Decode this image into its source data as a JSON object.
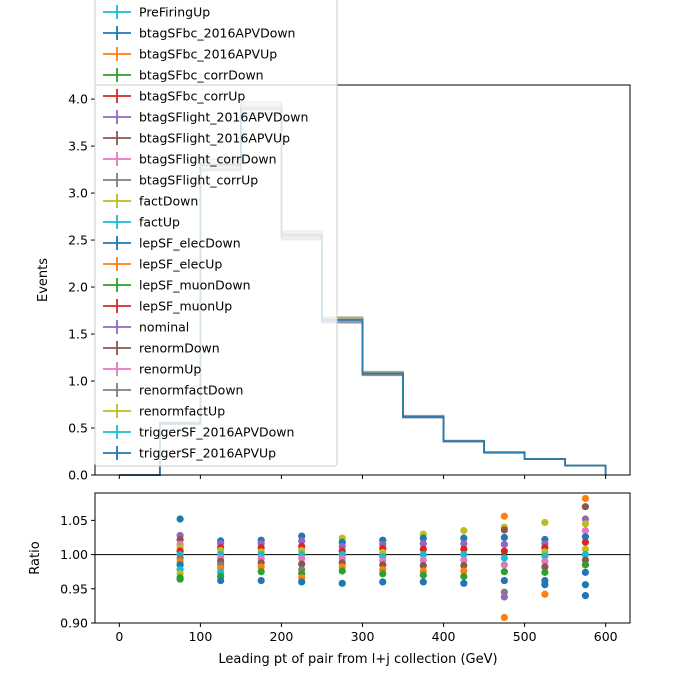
{
  "chart_data": [
    {
      "type": "line",
      "panel": "main",
      "xlabel": "",
      "ylabel": "Events",
      "xlim": [
        -30,
        630
      ],
      "ylim": [
        0,
        4.15
      ],
      "yticks": [
        0.0,
        0.5,
        1.0,
        1.5,
        2.0,
        2.5,
        3.0,
        3.5,
        4.0
      ],
      "ytick_labels": [
        "0.0",
        "0.5",
        "1.0",
        "1.5",
        "2.0",
        "2.5",
        "3.0",
        "3.5",
        "4.0"
      ],
      "bin_edges": [
        0,
        50,
        100,
        150,
        200,
        250,
        300,
        350,
        400,
        450,
        500,
        550,
        600
      ],
      "nominal_values": [
        0.0,
        0.55,
        3.3,
        3.9,
        2.55,
        1.65,
        1.08,
        0.62,
        0.36,
        0.24,
        0.17,
        0.1
      ],
      "legend_placement": "upper-left",
      "series": [
        {
          "name": "PreFiringUp",
          "color": "#17becf"
        },
        {
          "name": "btagSFbc_2016APVDown",
          "color": "#1f77b4"
        },
        {
          "name": "btagSFbc_2016APVUp",
          "color": "#ff7f0e"
        },
        {
          "name": "btagSFbc_corrDown",
          "color": "#2ca02c"
        },
        {
          "name": "btagSFbc_corrUp",
          "color": "#d62728"
        },
        {
          "name": "btagSFlight_2016APVDown",
          "color": "#9467bd"
        },
        {
          "name": "btagSFlight_2016APVUp",
          "color": "#8c564b"
        },
        {
          "name": "btagSFlight_corrDown",
          "color": "#e377c2"
        },
        {
          "name": "btagSFlight_corrUp",
          "color": "#7f7f7f"
        },
        {
          "name": "factDown",
          "color": "#bcbd22"
        },
        {
          "name": "factUp",
          "color": "#17becf"
        },
        {
          "name": "lepSF_elecDown",
          "color": "#1f77b4"
        },
        {
          "name": "lepSF_elecUp",
          "color": "#ff7f0e"
        },
        {
          "name": "lepSF_muonDown",
          "color": "#2ca02c"
        },
        {
          "name": "lepSF_muonUp",
          "color": "#d62728"
        },
        {
          "name": "nominal",
          "color": "#9467bd"
        },
        {
          "name": "renormDown",
          "color": "#8c564b"
        },
        {
          "name": "renormUp",
          "color": "#e377c2"
        },
        {
          "name": "renormfactDown",
          "color": "#7f7f7f"
        },
        {
          "name": "renormfactUp",
          "color": "#bcbd22"
        },
        {
          "name": "triggerSF_2016APVDown",
          "color": "#17becf"
        },
        {
          "name": "triggerSF_2016APVUp",
          "color": "#1f77b4"
        }
      ]
    },
    {
      "type": "scatter",
      "panel": "ratio",
      "xlabel": "Leading pt of pair from l+j collection (GeV)",
      "ylabel": "Ratio",
      "xlim": [
        -30,
        630
      ],
      "ylim": [
        0.9,
        1.09
      ],
      "xticks": [
        0,
        100,
        200,
        300,
        400,
        500,
        600
      ],
      "xtick_labels": [
        "0",
        "100",
        "200",
        "300",
        "400",
        "500",
        "600"
      ],
      "yticks": [
        0.9,
        0.95,
        1.0,
        1.05
      ],
      "ytick_labels": [
        "0.90",
        "0.95",
        "1.00",
        "1.05"
      ],
      "reference_line": 1.0,
      "points": [
        {
          "x": 75,
          "ys": [
            1.052,
            1.028,
            1.022,
            1.015,
            1.01,
            1.005,
            1.0,
            0.995,
            0.99,
            0.985,
            0.978,
            0.972,
            0.966,
            0.964
          ],
          "colors": [
            "#1f77b4",
            "#9467bd",
            "#8c564b",
            "#e377c2",
            "#bcbd22",
            "#d62728",
            "#17becf",
            "#7f7f7f",
            "#ff7f0e",
            "#1f77b4",
            "#17becf",
            "#bcbd22",
            "#2ca02c",
            "#2ca02c"
          ]
        },
        {
          "x": 125,
          "ys": [
            1.02,
            1.016,
            1.01,
            1.006,
            1.0,
            0.995,
            0.99,
            0.985,
            0.98,
            0.974,
            0.968,
            0.962
          ],
          "colors": [
            "#1f77b4",
            "#9467bd",
            "#d62728",
            "#bcbd22",
            "#17becf",
            "#e377c2",
            "#8c564b",
            "#7f7f7f",
            "#ff7f0e",
            "#17becf",
            "#2ca02c",
            "#1f77b4"
          ]
        },
        {
          "x": 175,
          "ys": [
            1.021,
            1.016,
            1.01,
            1.004,
            1.0,
            0.994,
            0.988,
            0.982,
            0.975,
            0.962
          ],
          "colors": [
            "#1f77b4",
            "#9467bd",
            "#d62728",
            "#bcbd22",
            "#17becf",
            "#e377c2",
            "#8c564b",
            "#ff7f0e",
            "#2ca02c",
            "#1f77b4"
          ]
        },
        {
          "x": 225,
          "ys": [
            1.027,
            1.02,
            1.012,
            1.006,
            1.0,
            0.994,
            0.986,
            0.978,
            0.972,
            0.966,
            0.96
          ],
          "colors": [
            "#1f77b4",
            "#9467bd",
            "#d62728",
            "#bcbd22",
            "#17becf",
            "#e377c2",
            "#8c564b",
            "#7f7f7f",
            "#2ca02c",
            "#ff7f0e",
            "#1f77b4"
          ]
        },
        {
          "x": 275,
          "ys": [
            1.024,
            1.018,
            1.012,
            1.005,
            1.0,
            0.994,
            0.988,
            0.982,
            0.976,
            0.958
          ],
          "colors": [
            "#bcbd22",
            "#1f77b4",
            "#9467bd",
            "#d62728",
            "#17becf",
            "#e377c2",
            "#8c564b",
            "#ff7f0e",
            "#2ca02c",
            "#1f77b4"
          ]
        },
        {
          "x": 325,
          "ys": [
            1.021,
            1.015,
            1.009,
            1.003,
            0.997,
            0.991,
            0.985,
            0.978,
            0.972,
            0.96
          ],
          "colors": [
            "#1f77b4",
            "#9467bd",
            "#d62728",
            "#bcbd22",
            "#17becf",
            "#e377c2",
            "#8c564b",
            "#ff7f0e",
            "#2ca02c",
            "#1f77b4"
          ]
        },
        {
          "x": 375,
          "ys": [
            1.03,
            1.024,
            1.016,
            1.008,
            1.0,
            0.992,
            0.984,
            0.976,
            0.97,
            0.96
          ],
          "colors": [
            "#bcbd22",
            "#1f77b4",
            "#9467bd",
            "#d62728",
            "#17becf",
            "#e377c2",
            "#8c564b",
            "#ff7f0e",
            "#2ca02c",
            "#1f77b4"
          ]
        },
        {
          "x": 425,
          "ys": [
            1.035,
            1.024,
            1.016,
            1.008,
            1.0,
            0.992,
            0.984,
            0.976,
            0.968,
            0.958
          ],
          "colors": [
            "#bcbd22",
            "#1f77b4",
            "#9467bd",
            "#d62728",
            "#17becf",
            "#e377c2",
            "#8c564b",
            "#ff7f0e",
            "#2ca02c",
            "#1f77b4"
          ]
        },
        {
          "x": 475,
          "ys": [
            1.056,
            1.04,
            1.036,
            1.025,
            1.015,
            1.005,
            0.995,
            0.985,
            0.975,
            0.962,
            0.945,
            0.938,
            0.908
          ],
          "colors": [
            "#ff7f0e",
            "#bcbd22",
            "#8c564b",
            "#1f77b4",
            "#9467bd",
            "#d62728",
            "#17becf",
            "#e377c2",
            "#2ca02c",
            "#1f77b4",
            "#7f7f7f",
            "#9467bd",
            "#ff7f0e"
          ]
        },
        {
          "x": 525,
          "ys": [
            1.047,
            1.022,
            1.016,
            1.01,
            1.004,
            0.998,
            0.99,
            0.982,
            0.974,
            0.962,
            0.956,
            0.942
          ],
          "colors": [
            "#bcbd22",
            "#1f77b4",
            "#9467bd",
            "#d62728",
            "#bcbd22",
            "#17becf",
            "#e377c2",
            "#8c564b",
            "#2ca02c",
            "#1f77b4",
            "#1f77b4",
            "#ff7f0e"
          ]
        },
        {
          "x": 575,
          "ys": [
            1.082,
            1.07,
            1.052,
            1.045,
            1.035,
            1.026,
            1.018,
            1.008,
            1.0,
            0.992,
            0.985,
            0.974,
            0.956,
            0.94
          ],
          "colors": [
            "#ff7f0e",
            "#8c564b",
            "#9467bd",
            "#bcbd22",
            "#e377c2",
            "#1f77b4",
            "#d62728",
            "#bcbd22",
            "#17becf",
            "#8c564b",
            "#2ca02c",
            "#1f77b4",
            "#1f77b4",
            "#1f77b4"
          ]
        }
      ]
    }
  ]
}
